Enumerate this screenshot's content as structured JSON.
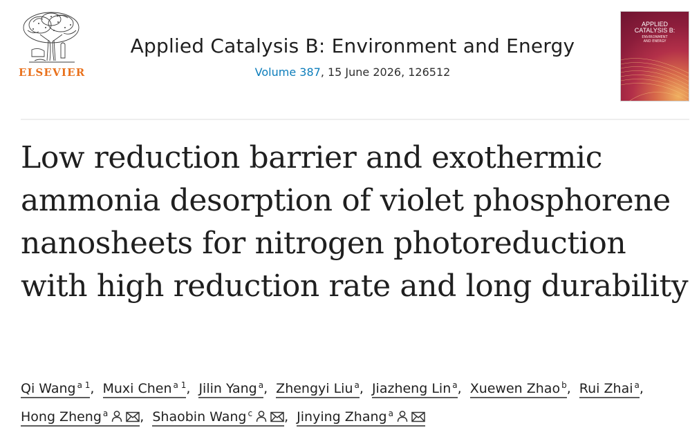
{
  "publisher": {
    "wordmark": "ELSEVIER",
    "logo_icon": "elsevier-tree-icon",
    "brand_color": "#e9711c"
  },
  "journal": {
    "title": "Applied Catalysis B: Environment and Energy",
    "volume_link": "Volume 387",
    "issue_info": ", 15 June 2026, 126512",
    "link_color": "#0c7dbb"
  },
  "cover": {
    "title_line1": "APPLIED",
    "title_line2": "CATALYSIS B:",
    "subtitle_line1": "ENVIRONMENT",
    "subtitle_line2": "AND ENERGY",
    "colors": {
      "dark": "#6e1430",
      "mid": "#b33049",
      "light": "#f0b060"
    }
  },
  "article": {
    "title": "Low reduction barrier and exothermic ammonia desorption of violet phosphorene nanosheets for nitrogen photoreduction with high reduction rate and long durability"
  },
  "authors": [
    {
      "name": "Qi Wang",
      "sup": "a 1",
      "icons": []
    },
    {
      "name": "Muxi Chen",
      "sup": "a 1",
      "icons": []
    },
    {
      "name": "Jilin Yang",
      "sup": "a",
      "icons": []
    },
    {
      "name": "Zhengyi Liu",
      "sup": "a",
      "icons": []
    },
    {
      "name": "Jiazheng Lin",
      "sup": "a",
      "icons": []
    },
    {
      "name": "Xuewen Zhao",
      "sup": "b",
      "icons": []
    },
    {
      "name": "Rui Zhai",
      "sup": "a",
      "icons": []
    },
    {
      "name": "Hong Zheng",
      "sup": "a",
      "icons": [
        "person-icon",
        "email-icon"
      ]
    },
    {
      "name": "Shaobin Wang",
      "sup": "c",
      "icons": [
        "person-icon",
        "email-icon"
      ]
    },
    {
      "name": "Jinying Zhang",
      "sup": "a",
      "icons": [
        "person-icon",
        "email-icon"
      ]
    }
  ],
  "separator": ","
}
